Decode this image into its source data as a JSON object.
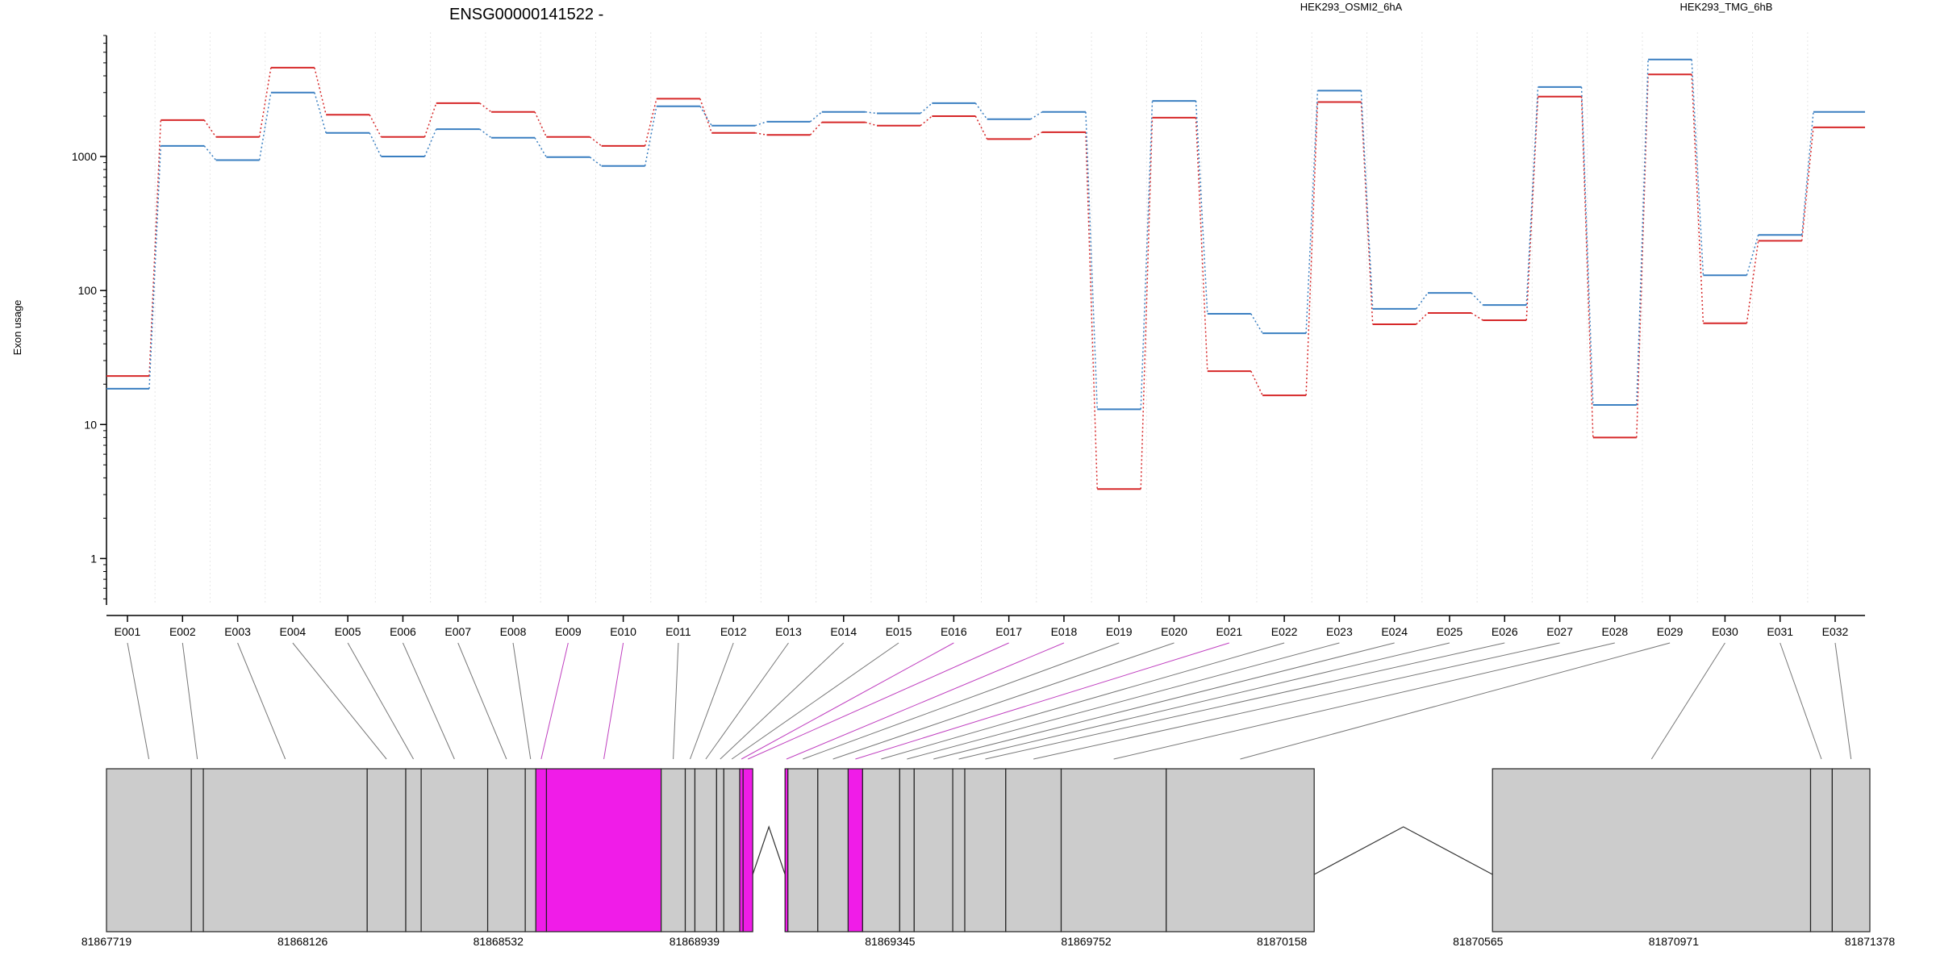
{
  "chart_data": {
    "type": "line",
    "title": "ENSG00000141522 -",
    "ylabel": "Exon usage",
    "xlabel": "",
    "yscale": "log",
    "ylim": [
      0.45,
      8000
    ],
    "yticks": [
      1,
      10,
      100,
      1000
    ],
    "ytick_labels": [
      "1",
      "10",
      "100",
      "1000"
    ],
    "grid": true,
    "legend_position": "top-right",
    "categories": [
      "E001",
      "E002",
      "E003",
      "E004",
      "E005",
      "E006",
      "E007",
      "E008",
      "E009",
      "E010",
      "E011",
      "E012",
      "E013",
      "E014",
      "E015",
      "E016",
      "E017",
      "E018",
      "E019",
      "E020",
      "E021",
      "E022",
      "E023",
      "E024",
      "E025",
      "E026",
      "E027",
      "E028",
      "E029",
      "E030",
      "E031",
      "E032"
    ],
    "series": [
      {
        "name": "HEK293_OSMI2_6hA",
        "color": "#d62728",
        "values": [
          23,
          1870,
          1400,
          4600,
          2050,
          1400,
          2500,
          2150,
          1400,
          1200,
          2700,
          1500,
          1450,
          1800,
          1700,
          2000,
          1350,
          1520,
          3.3,
          1950,
          25,
          16.5,
          2550,
          56,
          68,
          60,
          2800,
          8,
          4100,
          57,
          235,
          1650
        ]
      },
      {
        "name": "HEK293_TMG_6hB",
        "color": "#3a7fc1",
        "values": [
          18.5,
          1200,
          940,
          3000,
          1500,
          1000,
          1600,
          1380,
          990,
          850,
          2370,
          1700,
          1820,
          2150,
          2100,
          2500,
          1900,
          2150,
          13,
          2600,
          67,
          48,
          3100,
          73,
          96,
          78,
          3300,
          14,
          5300,
          130,
          260,
          2150
        ]
      }
    ],
    "genomic_axis": {
      "ticks": [
        81867719,
        81868126,
        81868532,
        81868939,
        81869345,
        81869752,
        81870158,
        81870565,
        81870971,
        81871378
      ],
      "tick_labels": [
        "81867719",
        "81868126",
        "81868532",
        "81868939",
        "81869345",
        "81869752",
        "81870158",
        "81870565",
        "81870971",
        "81871378"
      ],
      "range": [
        81867719,
        81871378
      ]
    },
    "exon_blocks": [
      {
        "start": 81867719,
        "end": 81867895,
        "highlight": false
      },
      {
        "start": 81867895,
        "end": 81867920,
        "highlight": false
      },
      {
        "start": 81867920,
        "end": 81868260,
        "highlight": false
      },
      {
        "start": 81868260,
        "end": 81868340,
        "highlight": false
      },
      {
        "start": 81868340,
        "end": 81868372,
        "highlight": false
      },
      {
        "start": 81868372,
        "end": 81868510,
        "highlight": false
      },
      {
        "start": 81868510,
        "end": 81868588,
        "highlight": false
      },
      {
        "start": 81868588,
        "end": 81868610,
        "highlight": false
      },
      {
        "start": 81868610,
        "end": 81868632,
        "highlight": true
      },
      {
        "start": 81868632,
        "end": 81868870,
        "highlight": true
      },
      {
        "start": 81868870,
        "end": 81868920,
        "highlight": false
      },
      {
        "start": 81868920,
        "end": 81868940,
        "highlight": false
      },
      {
        "start": 81868940,
        "end": 81868985,
        "highlight": false
      },
      {
        "start": 81868985,
        "end": 81869000,
        "highlight": false
      },
      {
        "start": 81869000,
        "end": 81869033,
        "highlight": false
      },
      {
        "start": 81869033,
        "end": 81869040,
        "highlight": true
      },
      {
        "start": 81869040,
        "end": 81869060,
        "highlight": true
      },
      {
        "start": 81869127,
        "end": 81869133,
        "highlight": true
      },
      {
        "start": 81869133,
        "end": 81869195,
        "highlight": false
      },
      {
        "start": 81869195,
        "end": 81869258,
        "highlight": false
      },
      {
        "start": 81869258,
        "end": 81869288,
        "highlight": true
      },
      {
        "start": 81869288,
        "end": 81869365,
        "highlight": false
      },
      {
        "start": 81869365,
        "end": 81869395,
        "highlight": false
      },
      {
        "start": 81869395,
        "end": 81869475,
        "highlight": false
      },
      {
        "start": 81869475,
        "end": 81869500,
        "highlight": false
      },
      {
        "start": 81869500,
        "end": 81869585,
        "highlight": false
      },
      {
        "start": 81869585,
        "end": 81869700,
        "highlight": false
      },
      {
        "start": 81869700,
        "end": 81869918,
        "highlight": false
      },
      {
        "start": 81869918,
        "end": 81870225,
        "highlight": false
      },
      {
        "start": 81870595,
        "end": 81871255,
        "highlight": false
      },
      {
        "start": 81871255,
        "end": 81871300,
        "highlight": false
      },
      {
        "start": 81871300,
        "end": 81871378,
        "highlight": false
      }
    ],
    "introns": [
      {
        "start": 81869060,
        "end": 81869127
      },
      {
        "start": 81870225,
        "end": 81870595
      }
    ]
  }
}
